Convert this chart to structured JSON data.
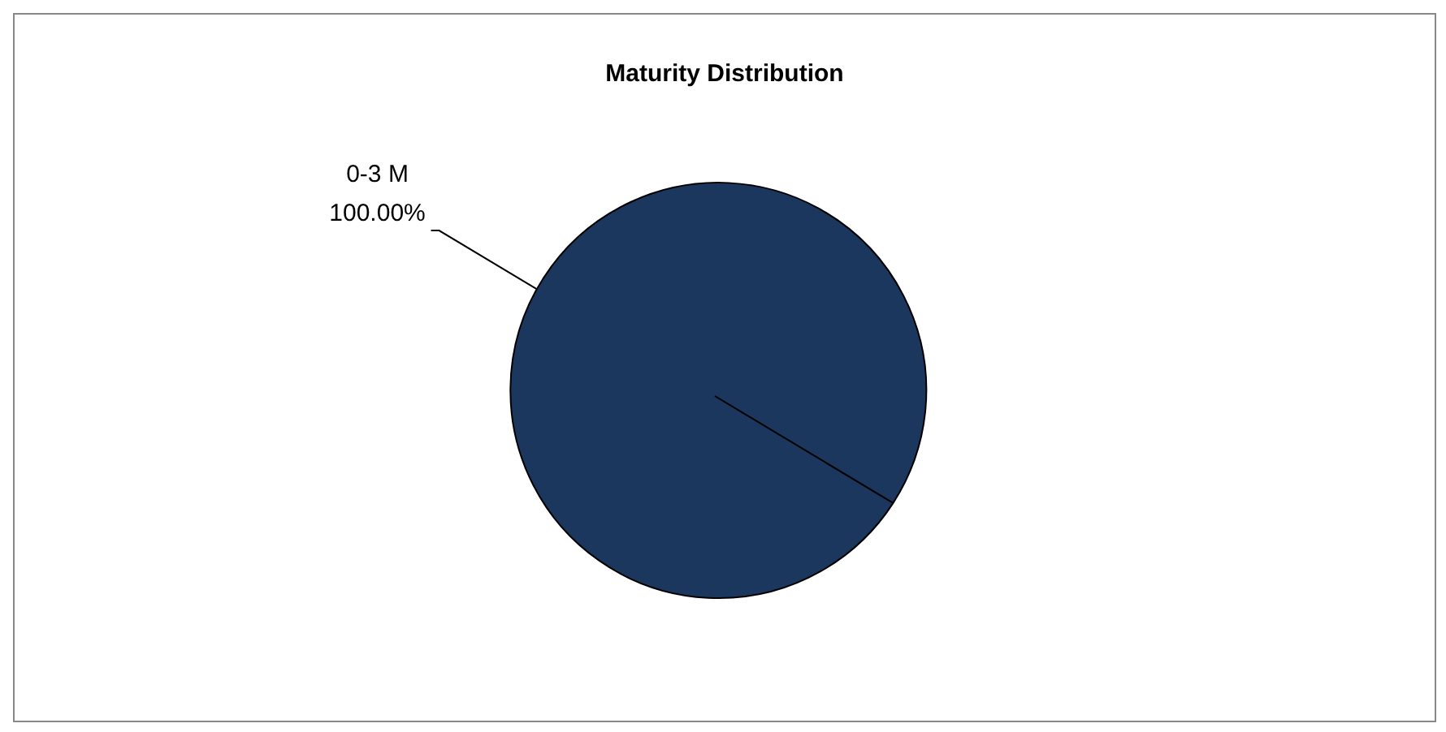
{
  "chart_data": {
    "type": "pie",
    "title": "Maturity Distribution",
    "categories": [
      "0-3 M"
    ],
    "values": [
      100
    ],
    "colors": [
      "#1b375e"
    ],
    "value_labels": [
      "100.00%"
    ],
    "legend": false
  }
}
